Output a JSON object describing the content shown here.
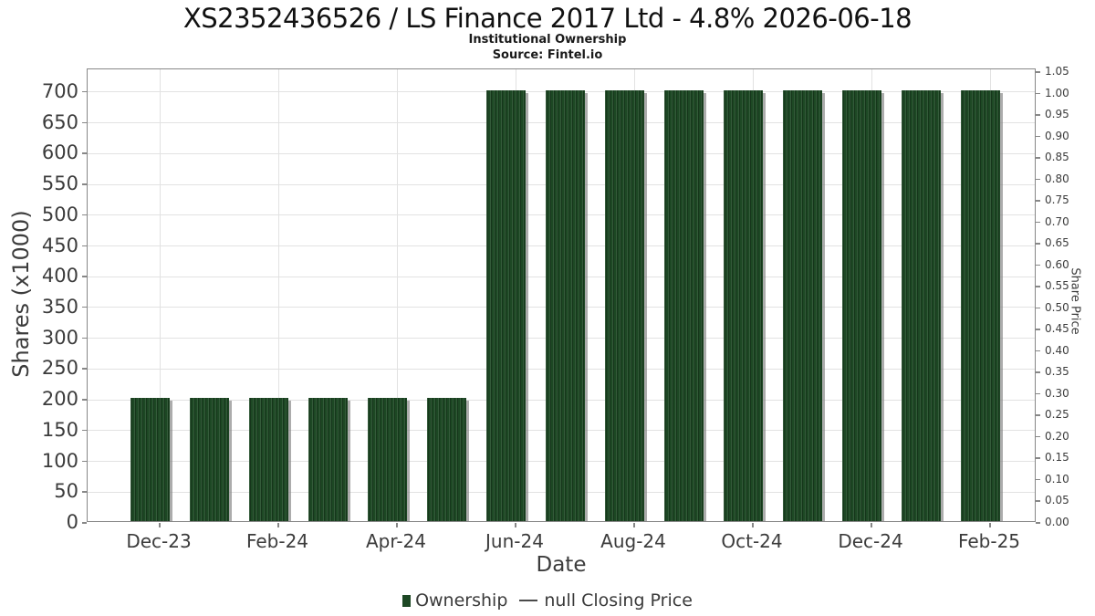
{
  "chart_data": {
    "type": "bar",
    "title": "XS2352436526 / LS Finance 2017 Ltd - 4.8% 2026-06-18",
    "subtitle": "Institutional Ownership",
    "source": "Source: Fintel.io",
    "xlabel": "Date",
    "ylabel_left": "Shares (x1000)",
    "ylabel_right": "Share Price",
    "categories": [
      "Dec-23",
      "Jan-24",
      "Feb-24",
      "Mar-24",
      "Apr-24",
      "May-24",
      "Jun-24",
      "Jul-24",
      "Aug-24",
      "Sep-24",
      "Oct-24",
      "Nov-24",
      "Dec-24",
      "Jan-25",
      "Feb-25"
    ],
    "series": [
      {
        "name": "Ownership",
        "type": "bar",
        "axis": "left",
        "color": "#1d4824",
        "values": [
          200,
          200,
          200,
          200,
          200,
          200,
          700,
          700,
          700,
          700,
          700,
          700,
          700,
          700,
          700
        ]
      },
      {
        "name": "null Closing Price",
        "type": "line",
        "axis": "right",
        "color": "#4a4a4a",
        "values": []
      }
    ],
    "x_tick_labels": [
      "Dec-23",
      "Feb-24",
      "Apr-24",
      "Jun-24",
      "Aug-24",
      "Oct-24",
      "Dec-24",
      "Feb-25"
    ],
    "months_per_x_tick": 2,
    "left_ticks": [
      0,
      50,
      100,
      150,
      200,
      250,
      300,
      350,
      400,
      450,
      500,
      550,
      600,
      650,
      700
    ],
    "right_ticks": [
      0,
      0.05,
      0.1,
      0.15,
      0.2,
      0.25,
      0.3,
      0.35,
      0.4,
      0.45,
      0.5,
      0.55,
      0.6,
      0.65,
      0.7,
      0.75,
      0.8,
      0.85,
      0.9,
      0.95,
      1,
      1.05
    ],
    "ylim_left": [
      0,
      737
    ],
    "ylim_right": [
      0,
      1.057
    ],
    "grid": true,
    "legend_position": "bottom"
  },
  "colors": {
    "bar_green": "#1d4824",
    "bar_shadow": "#9b9b9b",
    "grid": "#e2e2e2",
    "axis_border": "#878787",
    "tick_text": "#3c3c3c",
    "title_text": "#111111"
  }
}
